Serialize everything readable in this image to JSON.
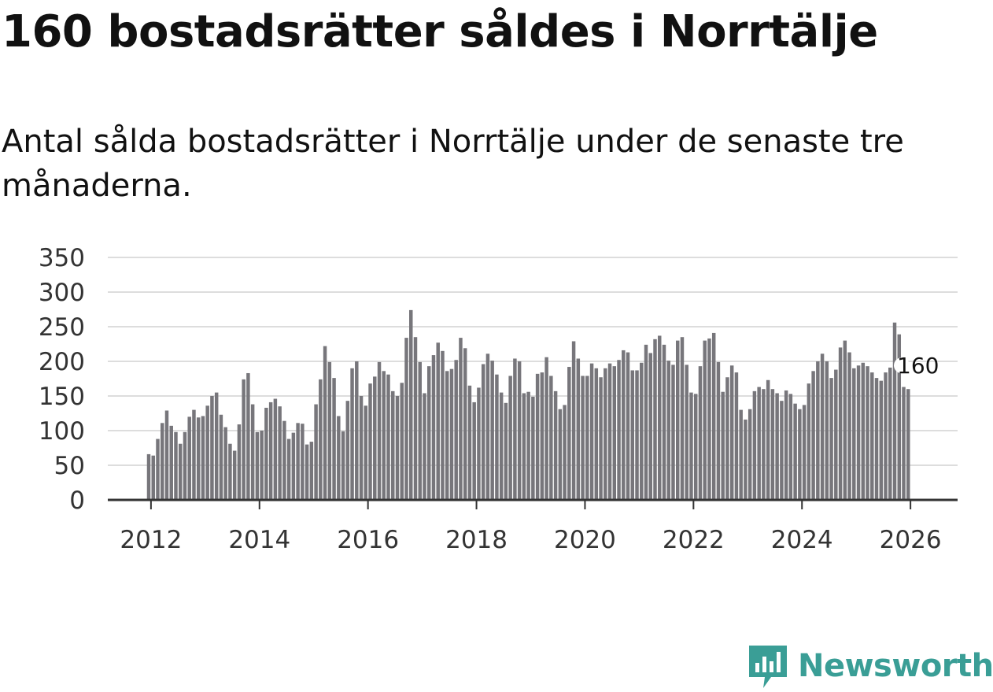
{
  "colors": {
    "bar": "#77767b",
    "highlight": "#1a9e96",
    "grid": "#dddddd",
    "axis": "#333333",
    "brand": "#3a9e96"
  },
  "brand": {
    "name": "Newsworthy",
    "icon": "newsworthy-logo-icon"
  },
  "chart_data": {
    "type": "bar",
    "title": "160 bostadsrätter såldes i Norrtälje",
    "subtitle": "Antal sålda bostadsrätter i Norrtälje under de senaste tre månaderna.",
    "xlabel": "",
    "ylabel": "",
    "ylim": [
      0,
      350
    ],
    "yticks": [
      0,
      50,
      100,
      150,
      200,
      250,
      300,
      350
    ],
    "xticks": [
      "2012",
      "2014",
      "2016",
      "2018",
      "2020",
      "2022",
      "2024",
      "2026"
    ],
    "start": "2011-12",
    "frequency": "monthly",
    "grid": true,
    "values": [
      66,
      64,
      88,
      111,
      129,
      107,
      98,
      81,
      98,
      120,
      130,
      119,
      121,
      136,
      150,
      155,
      123,
      105,
      81,
      71,
      109,
      174,
      183,
      138,
      98,
      100,
      133,
      141,
      146,
      135,
      114,
      88,
      97,
      111,
      110,
      80,
      84,
      138,
      174,
      222,
      199,
      176,
      121,
      99,
      143,
      190,
      200,
      150,
      136,
      168,
      178,
      199,
      186,
      181,
      157,
      150,
      169,
      234,
      274,
      235,
      199,
      154,
      193,
      209,
      227,
      215,
      186,
      189,
      202,
      234,
      219,
      165,
      141,
      162,
      196,
      211,
      201,
      181,
      155,
      140,
      179,
      204,
      200,
      154,
      156,
      149,
      182,
      184,
      206,
      179,
      157,
      131,
      137,
      192,
      229,
      204,
      179,
      179,
      197,
      190,
      177,
      190,
      197,
      193,
      202,
      216,
      213,
      187,
      187,
      198,
      224,
      212,
      232,
      237,
      224,
      201,
      195,
      230,
      235,
      195,
      155,
      153,
      193,
      230,
      233,
      241,
      199,
      156,
      177,
      194,
      184,
      130,
      116,
      131,
      157,
      163,
      160,
      173,
      160,
      154,
      143,
      158,
      153,
      139,
      131,
      137,
      168,
      186,
      200,
      211,
      200,
      176,
      188,
      220,
      230,
      213,
      190,
      194,
      198,
      193,
      184,
      176,
      172,
      184,
      191,
      256,
      239,
      163,
      160
    ],
    "highlight_index": 169,
    "annotation": {
      "text": "160",
      "index": 169,
      "value": 160
    }
  }
}
